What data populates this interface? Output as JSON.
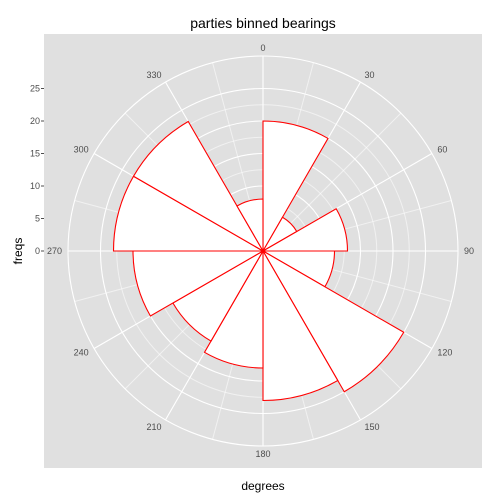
{
  "chart_data": {
    "type": "polar-bar",
    "title": "parties binned bearings",
    "xlabel": "degrees",
    "ylabel": "freqs",
    "bin_width_degrees": 30,
    "bin_starts": [
      0,
      30,
      60,
      90,
      120,
      150,
      180,
      210,
      240,
      270,
      300,
      330
    ],
    "values": [
      20,
      6,
      13,
      11,
      25,
      23,
      18,
      16,
      20,
      23,
      23,
      8
    ],
    "angle_ticks": [
      "0",
      "30",
      "60",
      "90",
      "120",
      "150",
      "180",
      "210",
      "240",
      "270",
      "300",
      "330"
    ],
    "radial_ticks": [
      "0",
      "5",
      "10",
      "15",
      "20",
      "25"
    ],
    "radial_range": [
      0,
      30
    ],
    "colors": {
      "panel": "#e0e0e0",
      "bar_fill": "#ffffff",
      "bar_stroke": "#ff0000",
      "grid": "#ffffff"
    }
  }
}
